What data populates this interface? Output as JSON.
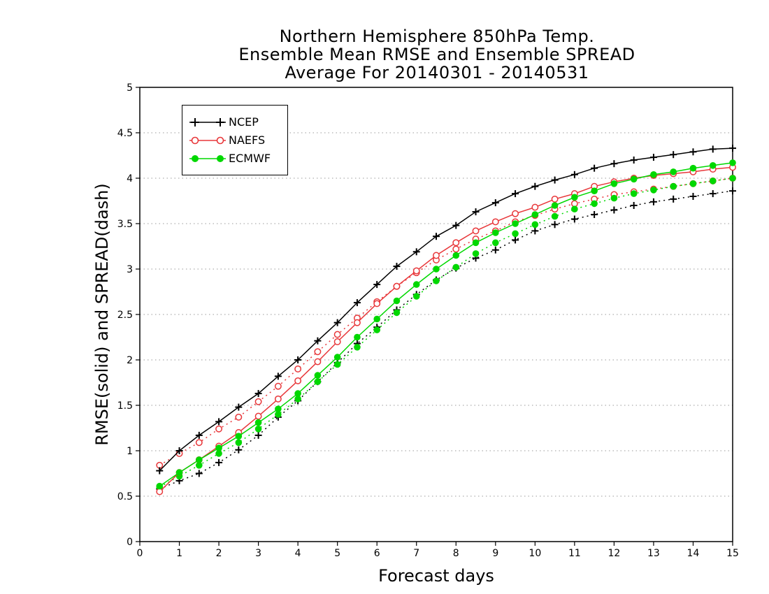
{
  "title_lines": [
    "Northern Hemisphere 850hPa Temp.",
    "Ensemble Mean RMSE and Ensemble SPREAD",
    "Average For 20140301 - 20140531"
  ],
  "xlabel": "Forecast days",
  "ylabel": "RMSE(solid) and SPREAD(dash)",
  "legend": [
    {
      "name": "NCEP",
      "color": "#000000",
      "marker": "plus"
    },
    {
      "name": "NAEFS",
      "color": "#e8373a",
      "marker": "open-circle"
    },
    {
      "name": "ECMWF",
      "color": "#00d800",
      "marker": "filled-circle"
    }
  ],
  "chart_data": {
    "type": "line",
    "title": "Northern Hemisphere 850hPa Temp. Ensemble Mean RMSE and Ensemble SPREAD Average For 20140301 - 20140531",
    "xlabel": "Forecast days",
    "ylabel": "RMSE(solid) and SPREAD(dash)",
    "xlim": [
      0,
      15
    ],
    "ylim": [
      0,
      5
    ],
    "xticks": [
      "0",
      "1",
      "2",
      "3",
      "4",
      "5",
      "6",
      "7",
      "8",
      "9",
      "10",
      "11",
      "12",
      "13",
      "14",
      "15"
    ],
    "yticks": [
      "0",
      "0.5",
      "1",
      "1.5",
      "2",
      "2.5",
      "3",
      "3.5",
      "4",
      "4.5",
      "5"
    ],
    "grid": "horizontal dotted",
    "legend_position": "top-left",
    "x": [
      0.5,
      1,
      1.5,
      2,
      2.5,
      3,
      3.5,
      4,
      4.5,
      5,
      5.5,
      6,
      6.5,
      7,
      7.5,
      8,
      8.5,
      9,
      9.5,
      10,
      10.5,
      11,
      11.5,
      12,
      12.5,
      13,
      13.5,
      14,
      14.5,
      15
    ],
    "series": [
      {
        "name": "NCEP",
        "kind": "RMSE",
        "style": "solid",
        "color": "#000000",
        "marker": "plus",
        "values": [
          0.78,
          1.0,
          1.17,
          1.32,
          1.48,
          1.63,
          1.82,
          2.0,
          2.21,
          2.41,
          2.63,
          2.83,
          3.03,
          3.19,
          3.36,
          3.48,
          3.63,
          3.73,
          3.83,
          3.91,
          3.98,
          4.04,
          4.11,
          4.16,
          4.2,
          4.23,
          4.26,
          4.29,
          4.32,
          4.33
        ]
      },
      {
        "name": "NCEP",
        "kind": "SPREAD",
        "style": "dash",
        "color": "#000000",
        "marker": "plus",
        "values": [
          0.58,
          0.67,
          0.75,
          0.87,
          1.01,
          1.17,
          1.37,
          1.55,
          1.76,
          1.97,
          2.18,
          2.36,
          2.55,
          2.72,
          2.88,
          3.01,
          3.12,
          3.21,
          3.32,
          3.42,
          3.49,
          3.55,
          3.6,
          3.65,
          3.7,
          3.74,
          3.77,
          3.8,
          3.83,
          3.86
        ]
      },
      {
        "name": "NAEFS",
        "kind": "RMSE",
        "style": "solid",
        "color": "#e8373a",
        "marker": "open-circle",
        "values": [
          0.55,
          0.76,
          0.9,
          1.05,
          1.2,
          1.38,
          1.57,
          1.77,
          1.98,
          2.2,
          2.41,
          2.62,
          2.81,
          2.98,
          3.15,
          3.29,
          3.42,
          3.52,
          3.61,
          3.68,
          3.77,
          3.83,
          3.91,
          3.96,
          4.0,
          4.03,
          4.05,
          4.07,
          4.1,
          4.12
        ]
      },
      {
        "name": "NAEFS",
        "kind": "SPREAD",
        "style": "dash",
        "color": "#e8373a",
        "marker": "open-circle",
        "values": [
          0.84,
          0.97,
          1.09,
          1.24,
          1.37,
          1.54,
          1.71,
          1.9,
          2.09,
          2.28,
          2.46,
          2.64,
          2.81,
          2.96,
          3.1,
          3.22,
          3.33,
          3.42,
          3.52,
          3.59,
          3.66,
          3.72,
          3.77,
          3.82,
          3.85,
          3.88,
          3.91,
          3.94,
          3.97,
          4.0
        ]
      },
      {
        "name": "ECMWF",
        "kind": "RMSE",
        "style": "solid",
        "color": "#00d800",
        "marker": "filled-circle",
        "values": [
          0.61,
          0.76,
          0.9,
          1.03,
          1.16,
          1.31,
          1.46,
          1.63,
          1.83,
          2.03,
          2.25,
          2.45,
          2.65,
          2.83,
          3.0,
          3.15,
          3.29,
          3.4,
          3.5,
          3.6,
          3.7,
          3.79,
          3.86,
          3.94,
          3.99,
          4.04,
          4.07,
          4.11,
          4.14,
          4.17
        ]
      },
      {
        "name": "ECMWF",
        "kind": "SPREAD",
        "style": "dash",
        "color": "#00d800",
        "marker": "filled-circle",
        "values": [
          0.6,
          0.72,
          0.84,
          0.97,
          1.09,
          1.24,
          1.4,
          1.57,
          1.76,
          1.95,
          2.14,
          2.33,
          2.52,
          2.7,
          2.87,
          3.02,
          3.17,
          3.29,
          3.39,
          3.49,
          3.58,
          3.66,
          3.72,
          3.78,
          3.83,
          3.87,
          3.91,
          3.94,
          3.97,
          4.0
        ]
      }
    ]
  }
}
